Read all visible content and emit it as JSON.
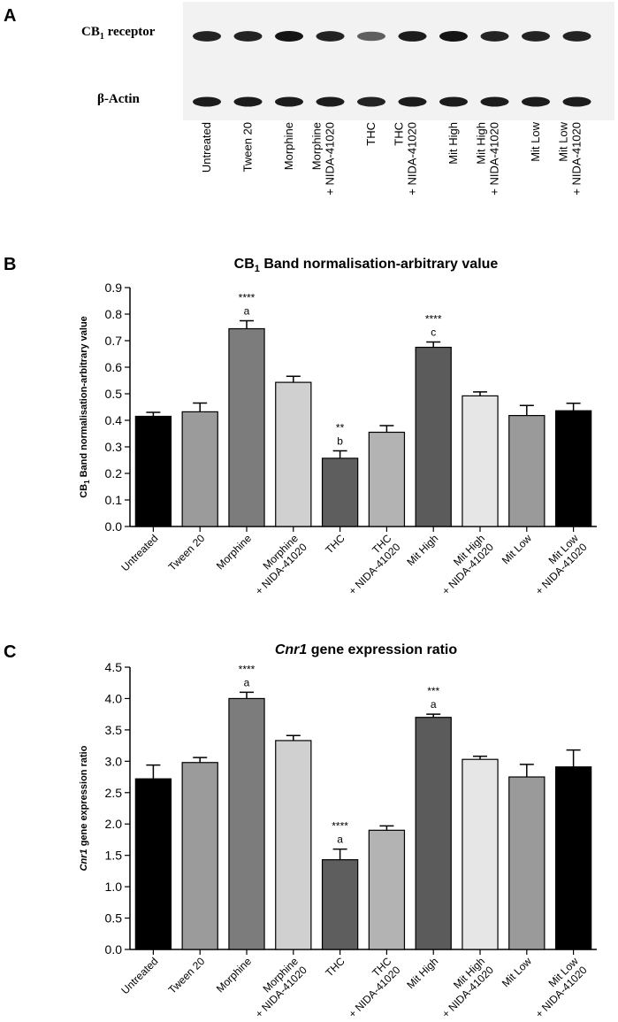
{
  "panel_a": {
    "label": "A",
    "receptor_label_main": "CB",
    "receptor_label_sub": "1",
    "receptor_label_rest": " receptor",
    "actin_label": "β-Actin",
    "lanes": [
      [
        "Untreated"
      ],
      [
        "Tween 20"
      ],
      [
        "Morphine"
      ],
      [
        "Morphine",
        "+ NIDA-41020"
      ],
      [
        "THC"
      ],
      [
        "THC",
        "+ NIDA-41020"
      ],
      [
        "Mit High"
      ],
      [
        "Mit High",
        "+ NIDA-41020"
      ],
      [
        "Mit Low"
      ],
      [
        "Mit Low",
        "+ NIDA-41020"
      ]
    ],
    "cb1_band_intensity": [
      0.9,
      0.9,
      1.0,
      0.9,
      0.5,
      0.95,
      1.0,
      0.9,
      0.9,
      0.9
    ],
    "actin_band_intensity": [
      0.95,
      0.95,
      0.95,
      0.95,
      0.9,
      0.95,
      0.95,
      0.95,
      0.95,
      0.95
    ]
  },
  "chart_data": [
    {
      "panel_label": "B",
      "type": "bar",
      "title_pre": "CB",
      "title_sub": "1",
      "title_post": " Band normalisation-arbitrary value",
      "title_italic": false,
      "ylabel_pre": "CB",
      "ylabel_sub": "1",
      "ylabel_post": " Band normalisation-arbitrary value",
      "ylabel_italic": false,
      "ylim": [
        0,
        0.9
      ],
      "yticks": [
        "0.0",
        "0.1",
        "0.2",
        "0.3",
        "0.4",
        "0.5",
        "0.6",
        "0.7",
        "0.8",
        "0.9"
      ],
      "categories": [
        [
          "Untreated"
        ],
        [
          "Tween 20"
        ],
        [
          "Morphine"
        ],
        [
          "Morphine",
          "+ NIDA-41020"
        ],
        [
          "THC"
        ],
        [
          "THC",
          "+ NIDA-41020"
        ],
        [
          "Mit High"
        ],
        [
          "Mit High",
          "+ NIDA-41020"
        ],
        [
          "Mit Low"
        ],
        [
          "Mit Low",
          "+ NIDA-41020"
        ]
      ],
      "values": [
        0.415,
        0.432,
        0.745,
        0.543,
        0.257,
        0.355,
        0.675,
        0.492,
        0.418,
        0.436
      ],
      "errors": [
        0.015,
        0.033,
        0.03,
        0.023,
        0.028,
        0.025,
        0.02,
        0.015,
        0.038,
        0.028
      ],
      "colors": [
        "#000000",
        "#9b9b9b",
        "#7c7c7c",
        "#d0d0d0",
        "#5e5e5e",
        "#b3b3b3",
        "#5b5b5b",
        "#e6e6e6",
        "#9a9a9a",
        "#000000"
      ],
      "annotations": [
        {
          "index": 2,
          "stars": "****",
          "letter": "a"
        },
        {
          "index": 4,
          "stars": "**",
          "letter": "b"
        },
        {
          "index": 6,
          "stars": "****",
          "letter": "c"
        }
      ]
    },
    {
      "panel_label": "C",
      "type": "bar",
      "title_pre": "Cnr1",
      "title_sub": "",
      "title_post": " gene expression ratio",
      "title_italic": true,
      "ylabel_pre": "Cnr1",
      "ylabel_sub": "",
      "ylabel_post": " gene expression ratio",
      "ylabel_italic": true,
      "ylim": [
        0,
        4.5
      ],
      "yticks": [
        "0.0",
        "0.5",
        "1.0",
        "1.5",
        "2.0",
        "2.5",
        "3.0",
        "3.5",
        "4.0",
        "4.5"
      ],
      "categories": [
        [
          "Untreated"
        ],
        [
          "Tween 20"
        ],
        [
          "Morphine"
        ],
        [
          "Morphine",
          "+ NIDA-41020"
        ],
        [
          "THC"
        ],
        [
          "THC",
          "+ NIDA-41020"
        ],
        [
          "Mit High"
        ],
        [
          "Mit High",
          "+ NIDA-41020"
        ],
        [
          "Mit Low"
        ],
        [
          "Mit Low",
          "+ NIDA-41020"
        ]
      ],
      "values": [
        2.72,
        2.98,
        4.0,
        3.33,
        1.43,
        1.9,
        3.7,
        3.03,
        2.75,
        2.91
      ],
      "errors": [
        0.22,
        0.08,
        0.1,
        0.08,
        0.17,
        0.07,
        0.05,
        0.05,
        0.2,
        0.27
      ],
      "colors": [
        "#000000",
        "#9b9b9b",
        "#7c7c7c",
        "#d0d0d0",
        "#5e5e5e",
        "#b3b3b3",
        "#5b5b5b",
        "#e6e6e6",
        "#9a9a9a",
        "#000000"
      ],
      "annotations": [
        {
          "index": 2,
          "stars": "****",
          "letter": "a"
        },
        {
          "index": 4,
          "stars": "****",
          "letter": "a"
        },
        {
          "index": 6,
          "stars": "***",
          "letter": "a"
        }
      ]
    }
  ]
}
